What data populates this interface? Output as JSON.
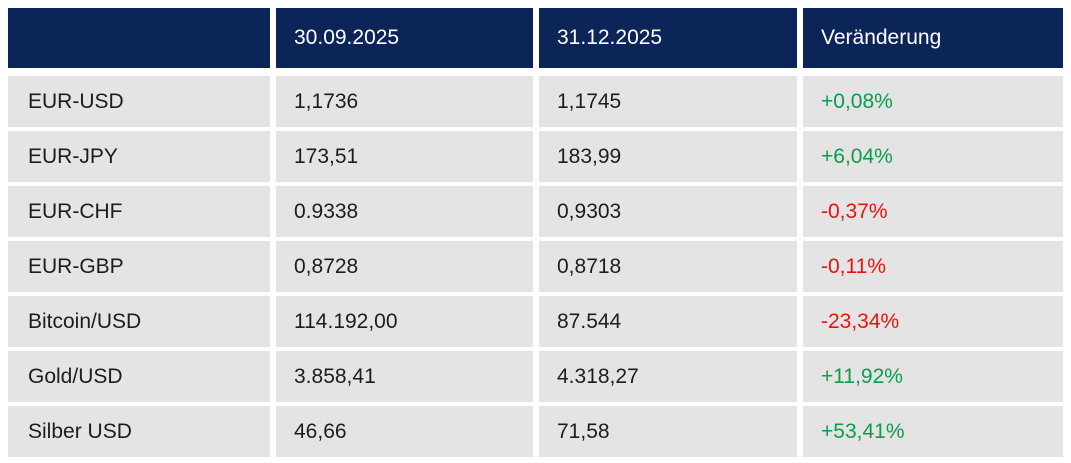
{
  "chart_data": {
    "type": "table",
    "columns": [
      "",
      "30.09.2025",
      "31.12.2025",
      "Veränderung"
    ],
    "rows": [
      [
        "EUR-USD",
        "1,1736",
        "1,1745",
        "+0,08%"
      ],
      [
        "EUR-JPY",
        "173,51",
        "183,99",
        "+6,04%"
      ],
      [
        "EUR-CHF",
        "0.9338",
        "0,9303",
        "-0,37%"
      ],
      [
        "EUR-GBP",
        "0,8728",
        "0,8718",
        "-0,11%"
      ],
      [
        "Bitcoin/USD",
        "114.192,00",
        "87.544",
        "-23,34%"
      ],
      [
        "Gold/USD",
        "3.858,41",
        "4.318,27",
        "+11,92%"
      ],
      [
        "Silber USD",
        "46,66",
        "71,58",
        "+53,41%"
      ]
    ]
  },
  "colors": {
    "header_bg": "#0b2558",
    "header_text": "#ffffff",
    "row_bg": "#e4e4e4",
    "text": "#1d1d1b",
    "positive": "#0d9c4c",
    "negative": "#e8130c",
    "page_bg": "#ffffff"
  }
}
